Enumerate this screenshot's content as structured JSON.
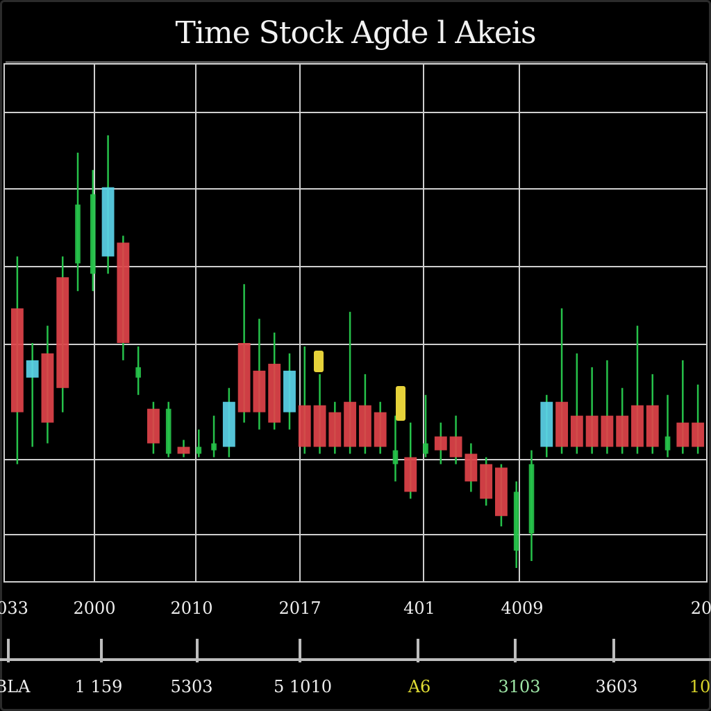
{
  "chart_data": {
    "type": "candlestick",
    "title": "Time Stock Agde l Akeis",
    "x_labels": [
      "033",
      "2000",
      "2010",
      "2017",
      "401",
      "4009",
      "",
      "20"
    ],
    "x_label_colors": [
      "#eeeeee",
      "#eeeeee",
      "#eeeeee",
      "#eeeeee",
      "#eeeeee",
      "#eeeeee",
      "#d8d42a",
      "#eeeeee"
    ],
    "bottom_labels": [
      "BLA",
      "1 159",
      "5303",
      "5 1010",
      "A6",
      "3103",
      "3603",
      "10"
    ],
    "bottom_label_colors": [
      "#eeeeee",
      "#eeeeee",
      "#eeeeee",
      "#eeeeee",
      "#e0dc34",
      "#9ee6a6",
      "#eeeeee",
      "#d8d42a"
    ],
    "grid": true,
    "colors": {
      "up": "#e0434a",
      "down": "#5bd2e8",
      "wick": "#26c24a",
      "highlight": "#e6d23a"
    },
    "candles": [
      {
        "open": 0.45,
        "close": 0.75,
        "high": 0.9,
        "low": 0.3,
        "color": "up"
      },
      {
        "open": 0.55,
        "close": 0.6,
        "high": 0.65,
        "low": 0.35,
        "color": "down"
      },
      {
        "open": 0.42,
        "close": 0.62,
        "high": 0.7,
        "low": 0.36,
        "color": "up"
      },
      {
        "open": 0.52,
        "close": 0.84,
        "high": 0.9,
        "low": 0.45,
        "color": "up"
      },
      {
        "open": 0.88,
        "close": 1.05,
        "high": 1.2,
        "low": 0.8,
        "color": "wick"
      },
      {
        "open": 0.85,
        "close": 1.08,
        "high": 1.15,
        "low": 0.8,
        "color": "wick"
      },
      {
        "open": 0.9,
        "close": 1.1,
        "high": 1.25,
        "low": 0.85,
        "color": "down"
      },
      {
        "open": 0.65,
        "close": 0.94,
        "high": 0.96,
        "low": 0.6,
        "color": "up"
      },
      {
        "open": 0.55,
        "close": 0.58,
        "high": 0.64,
        "low": 0.5,
        "color": "wick"
      },
      {
        "open": 0.36,
        "close": 0.46,
        "high": 0.48,
        "low": 0.33,
        "color": "up"
      },
      {
        "open": 0.33,
        "close": 0.46,
        "high": 0.48,
        "low": 0.32,
        "color": "wick"
      },
      {
        "open": 0.33,
        "close": 0.35,
        "high": 0.37,
        "low": 0.32,
        "color": "up"
      },
      {
        "open": 0.33,
        "close": 0.35,
        "high": 0.4,
        "low": 0.32,
        "color": "wick"
      },
      {
        "open": 0.34,
        "close": 0.36,
        "high": 0.44,
        "low": 0.32,
        "color": "wick"
      },
      {
        "open": 0.35,
        "close": 0.48,
        "high": 0.52,
        "low": 0.32,
        "color": "down"
      },
      {
        "open": 0.45,
        "close": 0.65,
        "high": 0.82,
        "low": 0.42,
        "color": "up"
      },
      {
        "open": 0.45,
        "close": 0.57,
        "high": 0.72,
        "low": 0.4,
        "color": "up"
      },
      {
        "open": 0.42,
        "close": 0.59,
        "high": 0.68,
        "low": 0.4,
        "color": "up"
      },
      {
        "open": 0.45,
        "close": 0.57,
        "high": 0.62,
        "low": 0.4,
        "color": "down"
      },
      {
        "open": 0.35,
        "close": 0.47,
        "high": 0.64,
        "low": 0.33,
        "color": "up"
      },
      {
        "open": 0.35,
        "close": 0.47,
        "high": 0.56,
        "low": 0.33,
        "color": "up"
      },
      {
        "open": 0.35,
        "close": 0.45,
        "high": 0.48,
        "low": 0.33,
        "color": "up"
      },
      {
        "open": 0.35,
        "close": 0.48,
        "high": 0.74,
        "low": 0.33,
        "color": "up"
      },
      {
        "open": 0.35,
        "close": 0.47,
        "high": 0.56,
        "low": 0.33,
        "color": "up"
      },
      {
        "open": 0.35,
        "close": 0.45,
        "high": 0.48,
        "low": 0.33,
        "color": "up"
      },
      {
        "open": 0.3,
        "close": 0.34,
        "high": 0.44,
        "low": 0.25,
        "color": "wick"
      },
      {
        "open": 0.22,
        "close": 0.32,
        "high": 0.42,
        "low": 0.2,
        "color": "up"
      },
      {
        "open": 0.33,
        "close": 0.36,
        "high": 0.5,
        "low": 0.32,
        "color": "wick"
      },
      {
        "open": 0.34,
        "close": 0.38,
        "high": 0.42,
        "low": 0.3,
        "color": "up"
      },
      {
        "open": 0.32,
        "close": 0.38,
        "high": 0.44,
        "low": 0.3,
        "color": "up"
      },
      {
        "open": 0.25,
        "close": 0.33,
        "high": 0.36,
        "low": 0.22,
        "color": "up"
      },
      {
        "open": 0.2,
        "close": 0.3,
        "high": 0.32,
        "low": 0.18,
        "color": "up"
      },
      {
        "open": 0.15,
        "close": 0.29,
        "high": 0.3,
        "low": 0.12,
        "color": "up"
      },
      {
        "open": 0.05,
        "close": 0.22,
        "high": 0.25,
        "low": 0.0,
        "color": "wick"
      },
      {
        "open": 0.1,
        "close": 0.3,
        "high": 0.34,
        "low": 0.02,
        "color": "wick"
      },
      {
        "open": 0.35,
        "close": 0.48,
        "high": 0.5,
        "low": 0.32,
        "color": "down"
      },
      {
        "open": 0.35,
        "close": 0.48,
        "high": 0.75,
        "low": 0.33,
        "color": "up"
      },
      {
        "open": 0.35,
        "close": 0.44,
        "high": 0.62,
        "low": 0.33,
        "color": "up"
      },
      {
        "open": 0.35,
        "close": 0.44,
        "high": 0.58,
        "low": 0.33,
        "color": "up"
      },
      {
        "open": 0.35,
        "close": 0.44,
        "high": 0.6,
        "low": 0.33,
        "color": "up"
      },
      {
        "open": 0.35,
        "close": 0.44,
        "high": 0.52,
        "low": 0.33,
        "color": "up"
      },
      {
        "open": 0.35,
        "close": 0.47,
        "high": 0.7,
        "low": 0.33,
        "color": "up"
      },
      {
        "open": 0.35,
        "close": 0.47,
        "high": 0.56,
        "low": 0.33,
        "color": "up"
      },
      {
        "open": 0.34,
        "close": 0.38,
        "high": 0.5,
        "low": 0.32,
        "color": "wick"
      },
      {
        "open": 0.35,
        "close": 0.42,
        "high": 0.6,
        "low": 0.33,
        "color": "up"
      },
      {
        "open": 0.35,
        "close": 0.42,
        "high": 0.53,
        "low": 0.33,
        "color": "up"
      }
    ]
  }
}
